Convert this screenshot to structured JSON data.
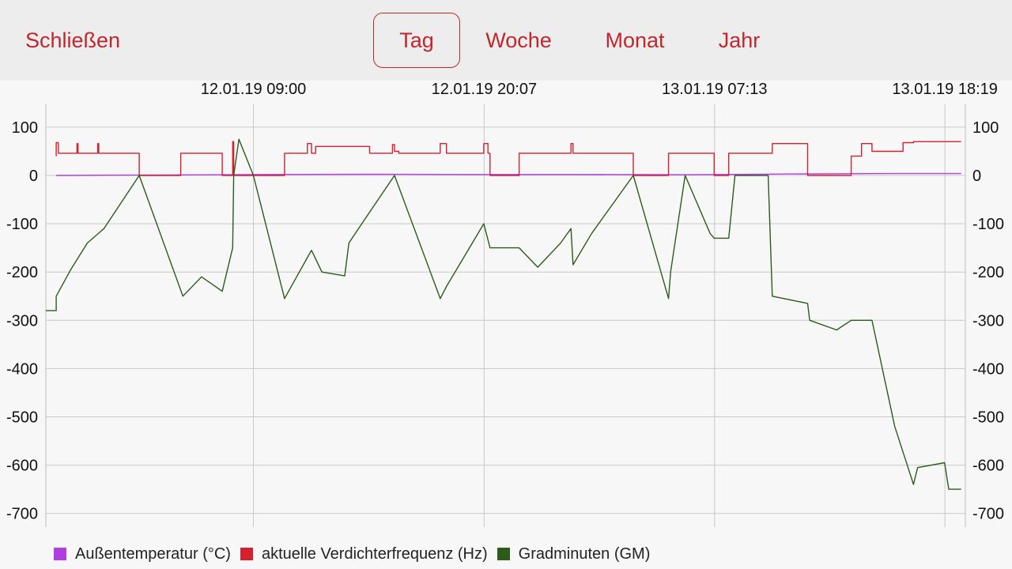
{
  "toolbar": {
    "close_label": "Schließen",
    "ranges": [
      {
        "label": "Tag",
        "selected": true
      },
      {
        "label": "Woche",
        "selected": false
      },
      {
        "label": "Monat",
        "selected": false
      },
      {
        "label": "Jahr",
        "selected": false
      }
    ]
  },
  "colors": {
    "accent": "#c0272d",
    "outdoor_temp": "#b03ee0",
    "compressor_freq": "#d4202f",
    "degree_minutes": "#2e5a1c"
  },
  "chart_data": {
    "type": "line",
    "x_tick_labels": [
      "12.01.19 09:00",
      "12.01.19 20:07",
      "13.01.19 07:13",
      "13.01.19 18:19"
    ],
    "x_tick_hours": [
      4.2,
      15.316,
      26.416,
      37.516
    ],
    "xlim_hours": [
      -5.8,
      38.5
    ],
    "y_ticks": [
      100,
      0,
      -100,
      -200,
      -300,
      -400,
      -500,
      -600,
      -700
    ],
    "ylim": [
      -720,
      145
    ],
    "grid": true,
    "legend_position": "bottom-left",
    "series": [
      {
        "name": "Außentemperatur (°C)",
        "color": "#b03ee0",
        "x": [
          -5.3,
          0,
          5,
          10,
          15,
          20,
          25,
          30,
          35,
          38.3
        ],
        "y": [
          0,
          1,
          2,
          2.5,
          2,
          2,
          1.5,
          3,
          4,
          4
        ]
      },
      {
        "name": "aktuelle Verdichterfrequenz (Hz)",
        "color": "#d4202f",
        "x": [
          -5.3,
          -5.3,
          -5.2,
          -5.2,
          -4.3,
          -4.3,
          -4.25,
          -4.25,
          -3.3,
          -3.3,
          -3.25,
          -3.25,
          -1.3,
          -1.3,
          0.7,
          0.7,
          2.7,
          2.7,
          3.2,
          3.2,
          3.25,
          3.25,
          5.7,
          5.7,
          6.8,
          6.8,
          7.0,
          7.0,
          7.2,
          7.2,
          9.8,
          9.8,
          10.9,
          10.9,
          11.0,
          11.0,
          11.2,
          11.2,
          13.2,
          13.2,
          13.5,
          13.5,
          15.3,
          15.3,
          15.5,
          15.5,
          15.6,
          15.6,
          17.0,
          17.0,
          19.5,
          19.5,
          19.6,
          19.6,
          22.5,
          22.5,
          24.2,
          24.2,
          26.4,
          26.4,
          27.1,
          27.1,
          29.2,
          29.2,
          30.9,
          30.9,
          33.0,
          33.0,
          33.5,
          33.5,
          34.0,
          34.0,
          35.5,
          35.5,
          36.0,
          36.0,
          38.3
        ],
        "y": [
          40,
          68,
          68,
          46,
          46,
          66,
          66,
          46,
          46,
          66,
          66,
          46,
          46,
          0,
          0,
          46,
          46,
          0,
          0,
          70,
          70,
          0,
          0,
          46,
          46,
          66,
          66,
          46,
          46,
          60,
          60,
          46,
          46,
          64,
          64,
          50,
          50,
          46,
          46,
          66,
          66,
          46,
          46,
          66,
          66,
          46,
          46,
          0,
          0,
          46,
          46,
          66,
          66,
          46,
          46,
          0,
          0,
          46,
          46,
          0,
          0,
          46,
          46,
          66,
          66,
          0,
          0,
          40,
          40,
          66,
          66,
          50,
          50,
          68,
          68,
          70,
          70
        ]
      },
      {
        "name": "Gradminuten (GM)",
        "color": "#2e5a1c",
        "x": [
          -5.8,
          -5.3,
          -5.3,
          -4.6,
          -3.8,
          -3.0,
          -1.3,
          0.8,
          1.7,
          2.7,
          3.2,
          3.25,
          3.5,
          4.2,
          5.7,
          6.8,
          7.0,
          7.5,
          8.6,
          8.8,
          9.5,
          11.0,
          13.2,
          13.5,
          15.3,
          15.6,
          17.0,
          17.9,
          19.0,
          19.5,
          19.6,
          20.5,
          22.5,
          24.2,
          24.3,
          25.0,
          26.2,
          26.4,
          27.1,
          27.4,
          29.0,
          29.2,
          30.9,
          31.0,
          32.3,
          33.0,
          34.0,
          35.1,
          36.0,
          36.2,
          37.5,
          37.7,
          38.3
        ],
        "y": [
          -280,
          -280,
          -250,
          -195,
          -140,
          -110,
          0,
          -250,
          -210,
          -240,
          -150,
          0,
          75,
          0,
          -255,
          -170,
          -155,
          -200,
          -208,
          -140,
          -95,
          0,
          -255,
          -230,
          -100,
          -150,
          -150,
          -190,
          -140,
          -110,
          -185,
          -120,
          0,
          -255,
          -200,
          0,
          -120,
          -130,
          -130,
          0,
          0,
          -250,
          -265,
          -300,
          -320,
          -300,
          -300,
          -520,
          -640,
          -605,
          -595,
          -650,
          -650
        ]
      }
    ]
  }
}
